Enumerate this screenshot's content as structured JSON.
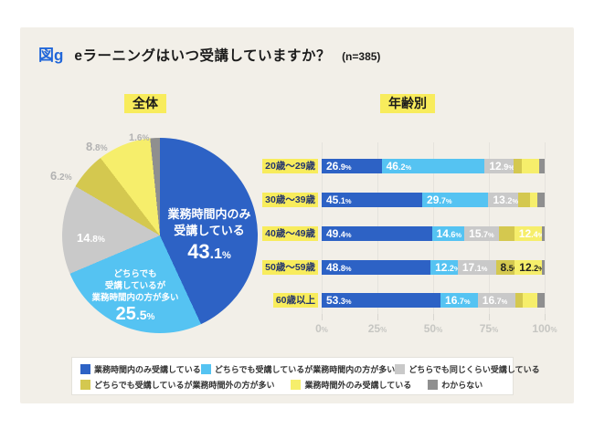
{
  "header": {
    "fig_label": "図g",
    "title": "eラーニングはいつ受講していますか？",
    "sample_size": "(n=385)"
  },
  "colors": {
    "page_bg": "#ffffff",
    "card_bg": "#f2efe8",
    "highlight_yellow": "#f8ec5c",
    "fig_label_blue": "#2066d9",
    "palette": [
      "#2d62c5",
      "#55c3f2",
      "#c9c9c9",
      "#d4c84f",
      "#f6ee6b",
      "#8f8f8f"
    ],
    "axis_text": "#c6c6c2",
    "outside_label_gray": "#b2b2b2",
    "age_label_text": "#24356d"
  },
  "chart_data": [
    {
      "type": "pie",
      "title": "全体",
      "slices": [
        {
          "label": "業務時間内のみ受講している",
          "value": 43.1,
          "color": "#2d62c5"
        },
        {
          "label": "どちらでも受講しているが業務時間内の方が多い",
          "value": 25.5,
          "color": "#55c3f2"
        },
        {
          "label": "どちらでも同じくらい受講している",
          "value": 14.8,
          "color": "#c9c9c9"
        },
        {
          "label": "どちらでも受講しているが業務時間外の方が多い",
          "value": 6.2,
          "color": "#d4c84f"
        },
        {
          "label": "業務時間外のみ受講している",
          "value": 8.8,
          "color": "#f6ee6b"
        },
        {
          "label": "わからない",
          "value": 1.6,
          "color": "#8f8f8f"
        }
      ],
      "annotations": {
        "main_label_lines": [
          "業務時間内のみ",
          "受講している"
        ],
        "second_label_lines": [
          "どちらでも",
          "受講しているが",
          "業務時間内の方が多い"
        ]
      },
      "start_angle_deg": 0,
      "direction": "clockwise"
    },
    {
      "type": "bar",
      "subtype": "horizontal_stacked",
      "title": "年齢別",
      "xlim": [
        0,
        100
      ],
      "xticks": [
        0,
        25,
        50,
        75,
        100
      ],
      "series_names": [
        "業務時間内のみ受講している",
        "どちらでも受講しているが業務時間内の方が多い",
        "どちらでも同じくらい受講している",
        "どちらでも受講しているが業務時間外の方が多い",
        "業務時間外のみ受講している",
        "わからない"
      ],
      "categories": [
        "20歳～29歳",
        "30歳～39歳",
        "40歳～49歳",
        "50歳～59歳",
        "60歳以上"
      ],
      "rows": [
        {
          "category": "20歳～29歳",
          "values": [
            26.9,
            46.2,
            12.9,
            3.8,
            7.7,
            2.5
          ],
          "labeled": [
            true,
            true,
            true,
            false,
            false,
            false
          ],
          "dark_label": [
            false,
            false,
            false,
            false,
            false,
            false
          ]
        },
        {
          "category": "30歳～39歳",
          "values": [
            45.1,
            29.7,
            13.2,
            5.5,
            3.3,
            3.2
          ],
          "labeled": [
            true,
            true,
            true,
            false,
            false,
            false
          ],
          "dark_label": [
            false,
            false,
            false,
            false,
            false,
            false
          ]
        },
        {
          "category": "40歳～49歳",
          "values": [
            49.4,
            14.6,
            15.7,
            6.7,
            12.4,
            1.2
          ],
          "labeled": [
            true,
            true,
            true,
            false,
            true,
            false
          ],
          "dark_label": [
            false,
            false,
            false,
            false,
            false,
            false
          ]
        },
        {
          "category": "50歳～59歳",
          "values": [
            48.8,
            12.2,
            17.1,
            8.5,
            12.2,
            1.2
          ],
          "labeled": [
            true,
            true,
            true,
            true,
            true,
            false
          ],
          "dark_label": [
            false,
            false,
            false,
            true,
            true,
            false
          ]
        },
        {
          "category": "60歳以上",
          "values": [
            53.3,
            16.7,
            16.7,
            3.3,
            6.7,
            3.3
          ],
          "labeled": [
            true,
            true,
            true,
            false,
            false,
            false
          ],
          "dark_label": [
            false,
            false,
            false,
            false,
            false,
            false
          ]
        }
      ]
    }
  ],
  "legend": {
    "items": [
      {
        "label": "業務時間内のみ受講している",
        "color": "#2d62c5"
      },
      {
        "label": "どちらでも受講しているが業務時間内の方が多い",
        "color": "#55c3f2"
      },
      {
        "label": "どちらでも同じくらい受講している",
        "color": "#c9c9c9"
      },
      {
        "label": "どちらでも受講しているが業務時間外の方が多い",
        "color": "#d4c84f"
      },
      {
        "label": "業務時間外のみ受講している",
        "color": "#f6ee6b"
      },
      {
        "label": "わからない",
        "color": "#8f8f8f"
      }
    ],
    "rows": [
      [
        0,
        1,
        2
      ],
      [
        3,
        4,
        5
      ]
    ]
  }
}
